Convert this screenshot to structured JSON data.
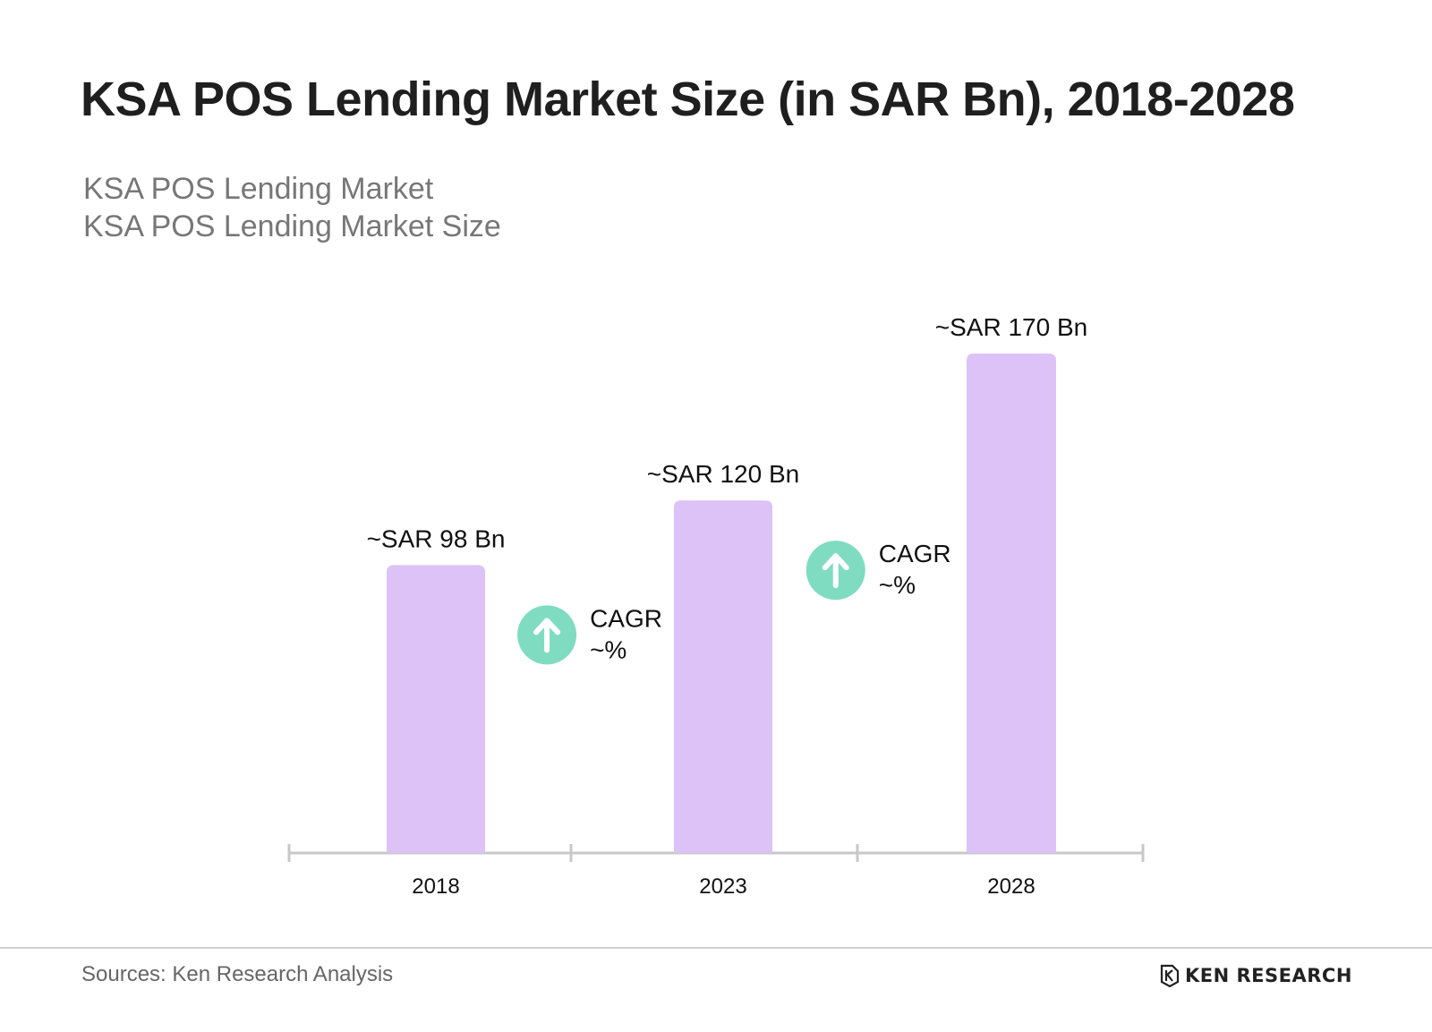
{
  "title": "KSA POS Lending Market Size (in SAR Bn), 2018-2028",
  "subtitle_lines": [
    "KSA POS Lending Market",
    "KSA POS Lending Market Size"
  ],
  "source": "Sources: Ken Research Analysis",
  "logo": {
    "text": "KEN RESEARCH",
    "icon": "ken-research-k-icon"
  },
  "colors": {
    "bar": "#dcc2f6",
    "cagr_circle": "#7fdcc1",
    "axis": "#c8c8c8",
    "text": "#111111"
  },
  "chart_data": {
    "type": "bar",
    "categories": [
      "2018",
      "2023",
      "2028"
    ],
    "values": [
      98,
      120,
      170
    ],
    "value_labels": [
      "~SAR 98 Bn",
      "~SAR 120 Bn",
      "~SAR 170 Bn"
    ],
    "cagr_annotations": [
      {
        "from": "2018",
        "to": "2023",
        "label": "CAGR",
        "value": "~%",
        "icon": "arrow-up-icon"
      },
      {
        "from": "2023",
        "to": "2028",
        "label": "CAGR",
        "value": "~%",
        "icon": "arrow-up-icon"
      }
    ],
    "ylim": [
      0,
      170
    ],
    "grid": false,
    "legend": "none"
  }
}
